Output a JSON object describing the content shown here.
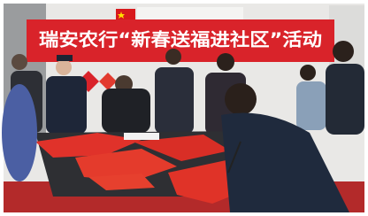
{
  "banner": {
    "text": "瑞安农行“新春送福进社区”活动"
  }
}
